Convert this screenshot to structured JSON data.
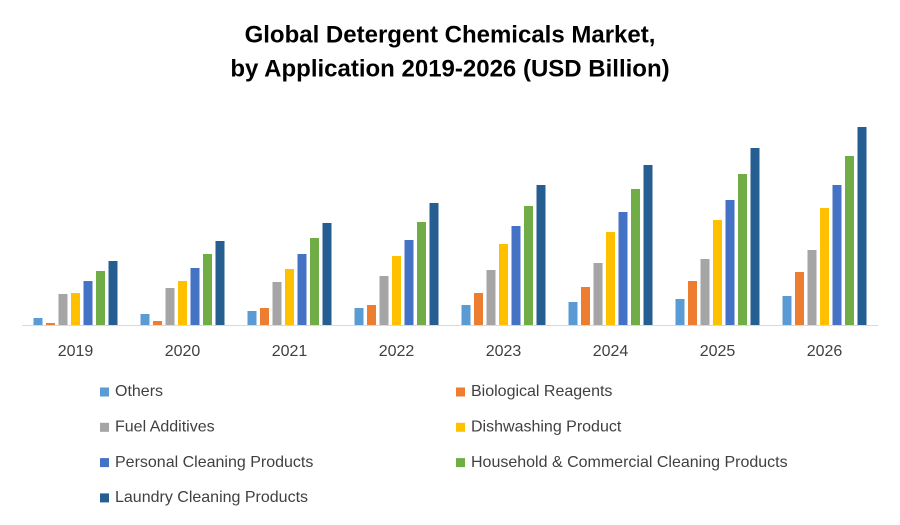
{
  "chart_data": {
    "type": "bar",
    "title": [
      "Global Detergent Chemicals Market,",
      "by Application 2019-2026 (USD Billion)"
    ],
    "categories": [
      "2019",
      "2020",
      "2021",
      "2022",
      "2023",
      "2024",
      "2025",
      "2026"
    ],
    "ylim": [
      0,
      10
    ],
    "series": [
      {
        "name": "Others",
        "color": "#5b9bd5",
        "values": [
          0.35,
          0.55,
          0.7,
          0.85,
          1.0,
          1.15,
          1.3,
          1.45
        ]
      },
      {
        "name": "Biological Reagents",
        "color": "#ed7d31",
        "values": [
          0.1,
          0.2,
          0.85,
          1.0,
          1.6,
          1.9,
          2.2,
          2.65
        ]
      },
      {
        "name": "Fuel Additives",
        "color": "#a5a5a5",
        "values": [
          1.55,
          1.85,
          2.15,
          2.45,
          2.75,
          3.1,
          3.3,
          3.75
        ]
      },
      {
        "name": "Dishwashing Product",
        "color": "#ffc000",
        "values": [
          1.6,
          2.2,
          2.8,
          3.45,
          4.05,
          4.65,
          5.25,
          5.85
        ]
      },
      {
        "name": "Personal Cleaning Products",
        "color": "#4472c4",
        "values": [
          2.2,
          2.85,
          3.55,
          4.25,
          4.95,
          5.65,
          6.25,
          7.0
        ]
      },
      {
        "name": "Household & Commercial Cleaning Products",
        "color": "#70ad47",
        "values": [
          2.7,
          3.55,
          4.35,
          5.15,
          5.95,
          6.8,
          7.55,
          8.45
        ]
      },
      {
        "name": "Laundry Cleaning Products",
        "color": "#255e91",
        "values": [
          3.2,
          4.2,
          5.1,
          6.1,
          7.0,
          8.0,
          8.85,
          9.9
        ]
      }
    ]
  }
}
